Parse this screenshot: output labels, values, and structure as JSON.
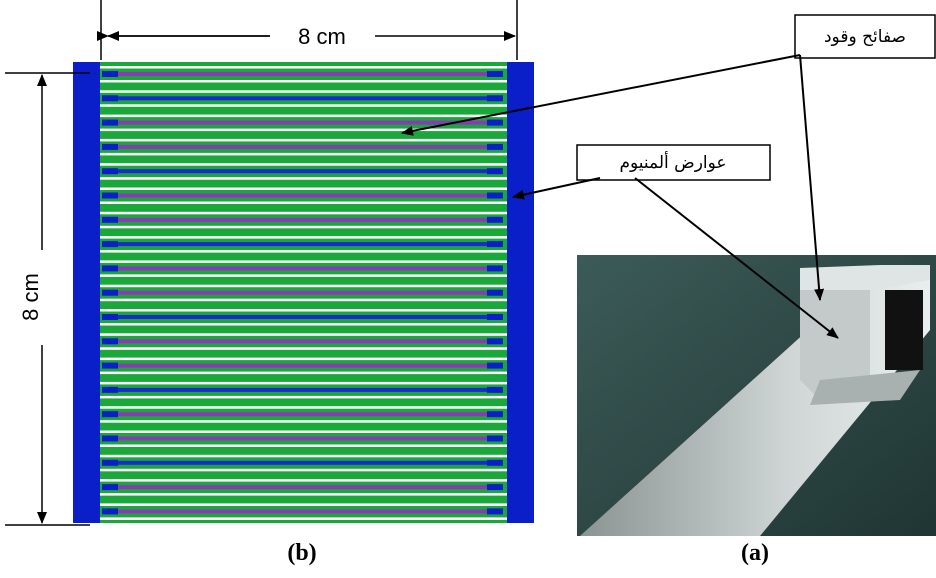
{
  "dimensions": {
    "width_label": "8 cm",
    "height_label": "8 cm"
  },
  "callouts": {
    "fuel_plates": "صفائح وقود",
    "aluminum_beams": "عوارض ألمنيوم"
  },
  "panels": {
    "left": "(b)",
    "right": "(a)"
  }
}
